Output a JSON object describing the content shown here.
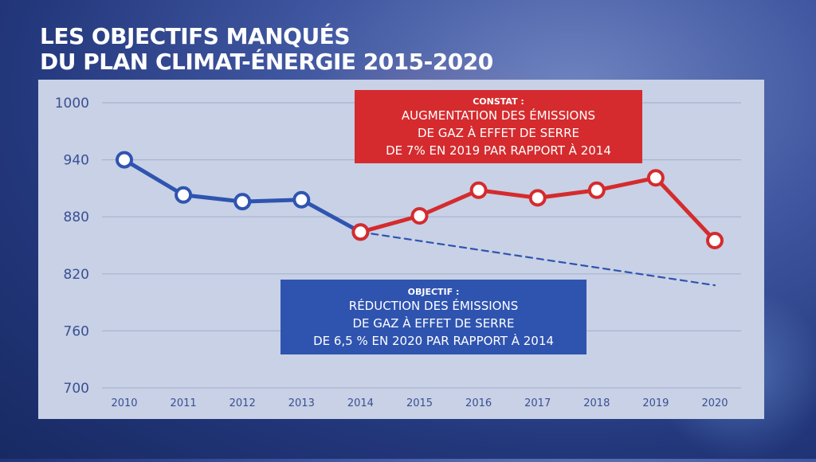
{
  "title": {
    "line1": "LES OBJECTIFS MANQUÉS",
    "line2": "DU PLAN CLIMAT-ÉNERGIE 2015-2020"
  },
  "colors": {
    "actual_before": "#2f54b0",
    "actual_after": "#d52b2e",
    "target": "#2f54b0",
    "panel": "#c8d1e5"
  },
  "annotations": {
    "constat": {
      "head": "CONSTAT :",
      "line1": "AUGMENTATION DES ÉMISSIONS",
      "line2": "DE GAZ À EFFET DE SERRE",
      "line3": "DE 7% EN 2019 PAR RAPPORT À 2014"
    },
    "objectif": {
      "head": "OBJECTIF :",
      "line1": "RÉDUCTION DES ÉMISSIONS",
      "line2": "DE GAZ À EFFET DE SERRE",
      "line3": "DE 6,5 % EN 2020 PAR RAPPORT À 2014"
    }
  },
  "chart_data": {
    "type": "line",
    "x": [
      "2010",
      "2011",
      "2012",
      "2013",
      "2014",
      "2015",
      "2016",
      "2017",
      "2018",
      "2019",
      "2020"
    ],
    "ylim": [
      700,
      1000
    ],
    "yticks": [
      1000,
      940,
      880,
      820,
      760,
      700
    ],
    "grid": true,
    "series": [
      {
        "values": [
          940,
          903,
          896,
          898,
          864,
          null,
          null,
          null,
          null,
          null,
          null
        ],
        "color": "#2f54b0",
        "style": "solid"
      },
      {
        "values": [
          null,
          null,
          null,
          null,
          864,
          881,
          908,
          900,
          908,
          921,
          855
        ],
        "color": "#d52b2e",
        "style": "solid"
      },
      {
        "values": [
          null,
          null,
          null,
          null,
          864,
          null,
          null,
          null,
          null,
          null,
          808
        ],
        "color": "#2f54b0",
        "style": "dashed"
      }
    ]
  }
}
